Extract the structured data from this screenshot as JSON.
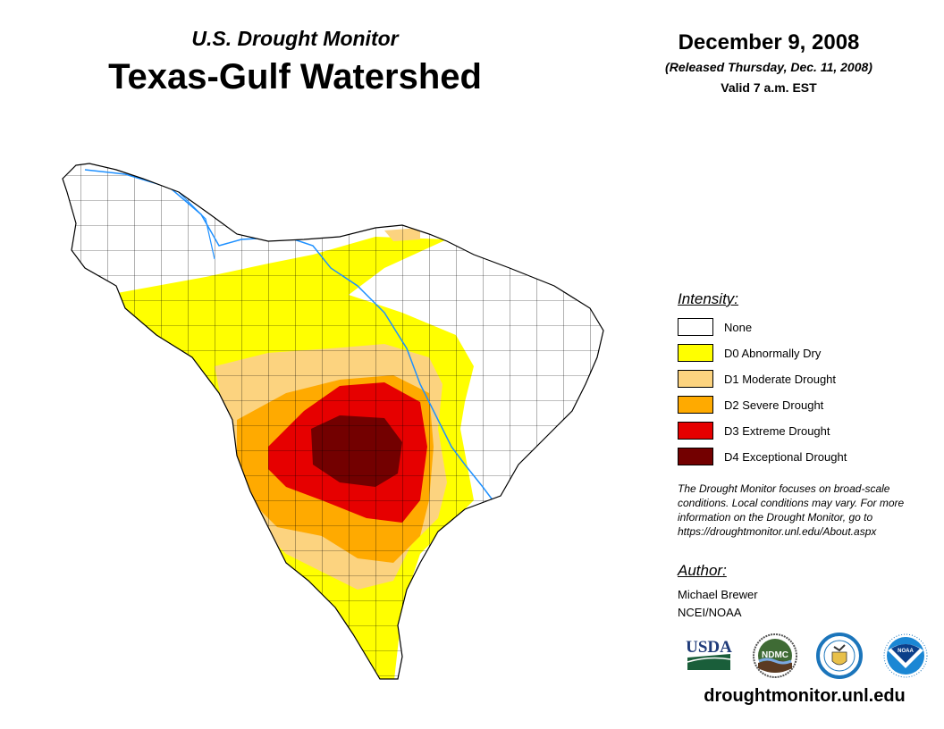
{
  "header": {
    "subtitle": "U.S. Drought Monitor",
    "title": "Texas-Gulf Watershed"
  },
  "date": {
    "main": "December 9, 2008",
    "released": "(Released Thursday, Dec. 11, 2008)",
    "valid": "Valid 7 a.m. EST"
  },
  "legend": {
    "heading": "Intensity:",
    "items": [
      {
        "label": "None",
        "color": "#ffffff"
      },
      {
        "label": "D0 Abnormally Dry",
        "color": "#ffff00"
      },
      {
        "label": "D1 Moderate Drought",
        "color": "#fcd37f"
      },
      {
        "label": "D2 Severe Drought",
        "color": "#ffaa00"
      },
      {
        "label": "D3 Extreme Drought",
        "color": "#e60000"
      },
      {
        "label": "D4 Exceptional Drought",
        "color": "#730000"
      }
    ]
  },
  "note": "The Drought Monitor focuses on broad-scale conditions. Local conditions may vary. For more information on the Drought Monitor, go to https://droughtmonitor.unl.edu/About.aspx",
  "author": {
    "heading": "Author:",
    "name": "Michael Brewer",
    "org": "NCEI/NOAA"
  },
  "logos": [
    "USDA",
    "NDMC",
    "Dept. of Commerce",
    "NOAA"
  ],
  "footer_url": "droughtmonitor.unl.edu"
}
